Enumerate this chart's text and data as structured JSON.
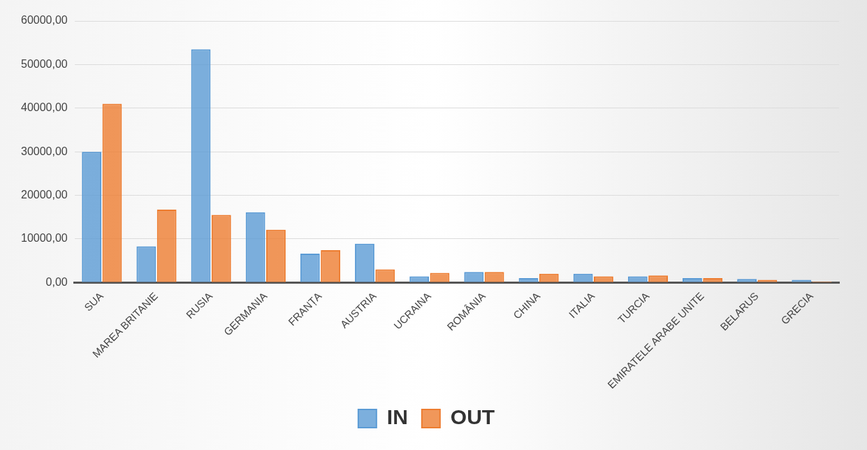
{
  "chart_data": {
    "type": "bar",
    "categories": [
      "SUA",
      "MAREA BRITANIE",
      "RUSIA",
      "GERMANIA",
      "FRANȚA",
      "AUSTRIA",
      "UCRAINA",
      "ROMÂNIA",
      "CHINA",
      "ITALIA",
      "TURCIA",
      "EMIRATELE ARABE UNITE",
      "BELARUS",
      "GRECIA"
    ],
    "series": [
      {
        "name": "IN",
        "color": "#5b9bd5",
        "values": [
          30000,
          8300,
          53500,
          16100,
          6600,
          8900,
          1400,
          2400,
          1000,
          2000,
          1400,
          1000,
          800,
          600
        ]
      },
      {
        "name": "OUT",
        "color": "#ed7d31",
        "values": [
          41000,
          16700,
          15500,
          12100,
          7400,
          3000,
          2200,
          2400,
          2000,
          1400,
          1600,
          1000,
          600,
          200
        ]
      }
    ],
    "ylim": [
      0,
      60000
    ],
    "yticks": [
      {
        "value": 0,
        "label": "0,00"
      },
      {
        "value": 10000,
        "label": "10000,00"
      },
      {
        "value": 20000,
        "label": "20000,00"
      },
      {
        "value": 30000,
        "label": "30000,00"
      },
      {
        "value": 40000,
        "label": "40000,00"
      },
      {
        "value": 50000,
        "label": "50000,00"
      },
      {
        "value": 60000,
        "label": "60000,00"
      }
    ],
    "grid": "y",
    "legend": "bottom"
  }
}
